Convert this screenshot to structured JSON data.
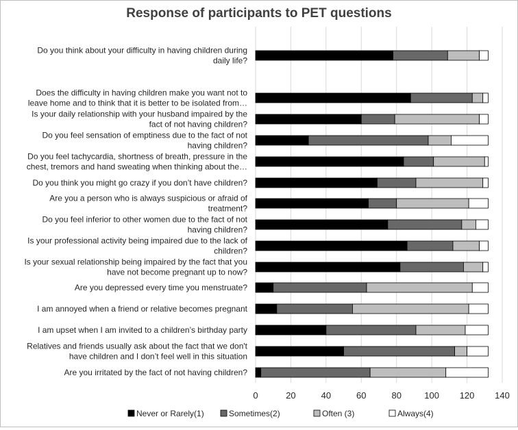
{
  "chart_data": {
    "type": "bar",
    "orientation": "horizontal",
    "stacked": true,
    "title": "Response of participants to PET questions",
    "xlabel": "",
    "ylabel": "",
    "xlim": [
      0,
      140
    ],
    "xticks": [
      "0",
      "20",
      "40",
      "60",
      "80",
      "100",
      "120",
      "140"
    ],
    "grid": "vertical",
    "legend_position": "bottom",
    "categories": [
      {
        "label": [
          "Do you think about your difficulty in having children during",
          "daily life?"
        ]
      },
      {
        "label": [
          "Does the difficulty in having children make you want not to",
          "leave home and to think that it is better to be isolated from…"
        ]
      },
      {
        "label": [
          "Is your daily relationship with your husband impaired by the",
          "fact of not having children?"
        ]
      },
      {
        "label": [
          "Do you feel sensation of emptiness due to the fact of not",
          "having children?"
        ]
      },
      {
        "label": [
          "Do you feel tachycardia, shortness of breath, pressure in the",
          "chest, tremors and hand sweating when thinking about the…"
        ]
      },
      {
        "label": [
          "Do you think you might go crazy if you don’t have children?"
        ]
      },
      {
        "label": [
          "Are you a person who is always suspicious or afraid of",
          "treatment?"
        ]
      },
      {
        "label": [
          "Do you feel inferior to other women due to the fact of not",
          "having children?"
        ]
      },
      {
        "label": [
          "Is your professional activity being impaired due to the lack of",
          "children?"
        ]
      },
      {
        "label": [
          "Is your sexual relationship being impaired by the fact that you",
          "have not become pregnant up to now?"
        ]
      },
      {
        "label": [
          "Are you depressed every time you menstruate?"
        ]
      },
      {
        "label": [
          "I am annoyed when a friend or relative becomes pregnant"
        ]
      },
      {
        "label": [
          "I am upset when I am invited to a children’s birthday party"
        ]
      },
      {
        "label": [
          "Relatives and friends usually ask about the fact that we don't",
          "have children and I don’t feel well in this situation"
        ]
      },
      {
        "label": [
          "Are you irritated by the fact of not having children?"
        ]
      }
    ],
    "series": [
      {
        "name": "Never or Rarely(1)",
        "color": "#000000",
        "values": [
          78,
          88,
          60,
          30,
          84,
          69,
          64,
          75,
          86,
          82,
          10,
          12,
          40,
          50,
          3
        ]
      },
      {
        "name": "Sometimes(2)",
        "color": "#686868",
        "values": [
          31,
          35,
          19,
          68,
          17,
          22,
          16,
          42,
          26,
          36,
          53,
          43,
          51,
          63,
          62
        ]
      },
      {
        "name": "Often (3)",
        "color": "#bdbdbd",
        "values": [
          18,
          6,
          48,
          13,
          29,
          38,
          41,
          8,
          15,
          11,
          60,
          66,
          28,
          7,
          43
        ]
      },
      {
        "name": "Always(4)",
        "color": "#ffffff",
        "values": [
          5,
          3,
          5,
          21,
          2,
          3,
          11,
          7,
          5,
          3,
          9,
          11,
          13,
          12,
          24
        ]
      }
    ]
  }
}
